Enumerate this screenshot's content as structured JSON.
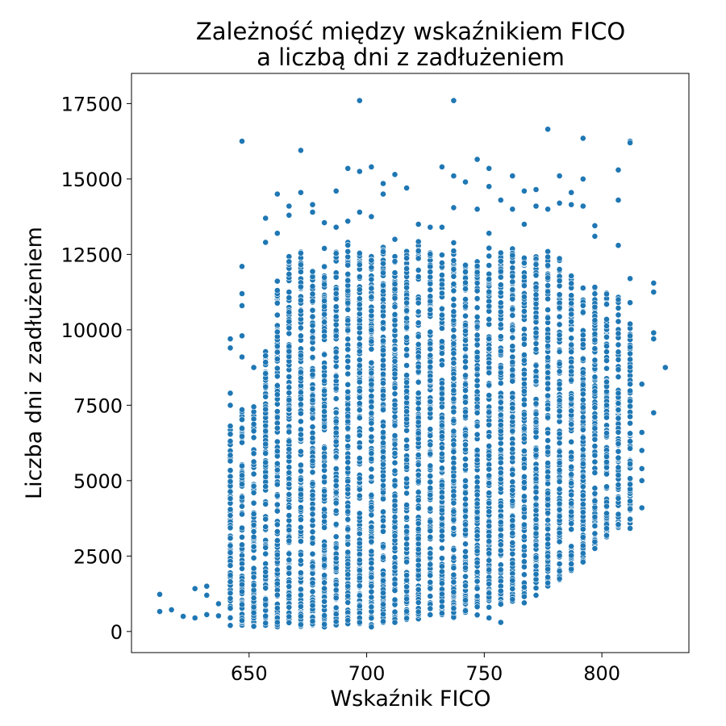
{
  "chart_data": {
    "type": "scatter",
    "title": [
      "Zależność między wskaźnikiem FICO",
      "a liczbą dni z zadłużeniem"
    ],
    "xlabel": "Wskaźnik FICO",
    "ylabel": "Liczba dni z zadłużeniem",
    "xlim": [
      600,
      837
    ],
    "ylim": [
      -700,
      18500
    ],
    "xticks": [
      650,
      700,
      750,
      800
    ],
    "yticks": [
      0,
      2500,
      5000,
      7500,
      10000,
      12500,
      15000,
      17500
    ],
    "grid": false,
    "legend": "none",
    "point_color": "#1f77b4",
    "outliers": [
      [
        612,
        660
      ],
      [
        612,
        1230
      ],
      [
        617,
        720
      ],
      [
        622,
        500
      ],
      [
        627,
        450
      ],
      [
        627,
        1420
      ],
      [
        632,
        560
      ],
      [
        632,
        1500
      ],
      [
        632,
        1200
      ],
      [
        637,
        520
      ],
      [
        637,
        920
      ],
      [
        642,
        9700
      ],
      [
        642,
        9400
      ],
      [
        642,
        7900
      ],
      [
        642,
        7500
      ],
      [
        647,
        16250
      ],
      [
        647,
        12100
      ],
      [
        647,
        11200
      ],
      [
        647,
        10800
      ],
      [
        647,
        9800
      ],
      [
        647,
        9100
      ],
      [
        652,
        8750
      ],
      [
        657,
        13700
      ],
      [
        657,
        12900
      ],
      [
        662,
        14500
      ],
      [
        662,
        13200
      ],
      [
        667,
        14100
      ],
      [
        667,
        13800
      ],
      [
        672,
        15950
      ],
      [
        672,
        14550
      ],
      [
        677,
        14150
      ],
      [
        677,
        13900
      ],
      [
        682,
        13550
      ],
      [
        682,
        12700
      ],
      [
        687,
        14600
      ],
      [
        687,
        13400
      ],
      [
        692,
        15350
      ],
      [
        692,
        13600
      ],
      [
        697,
        17600
      ],
      [
        697,
        15250
      ],
      [
        697,
        13900
      ],
      [
        702,
        15400
      ],
      [
        702,
        13750
      ],
      [
        707,
        14850
      ],
      [
        707,
        14500
      ],
      [
        712,
        15150
      ],
      [
        712,
        13000
      ],
      [
        717,
        14700
      ],
      [
        722,
        13500
      ],
      [
        727,
        13400
      ],
      [
        732,
        15400
      ],
      [
        732,
        13400
      ],
      [
        737,
        17600
      ],
      [
        737,
        15100
      ],
      [
        737,
        14050
      ],
      [
        742,
        14900
      ],
      [
        747,
        15650
      ],
      [
        747,
        14000
      ],
      [
        752,
        15350
      ],
      [
        752,
        14750
      ],
      [
        752,
        13200
      ],
      [
        757,
        14300
      ],
      [
        762,
        15100
      ],
      [
        762,
        14000
      ],
      [
        767,
        14600
      ],
      [
        767,
        13500
      ],
      [
        772,
        14650
      ],
      [
        772,
        14100
      ],
      [
        777,
        16650
      ],
      [
        777,
        14000
      ],
      [
        782,
        15100
      ],
      [
        782,
        14200
      ],
      [
        787,
        14550
      ],
      [
        787,
        14150
      ],
      [
        792,
        16350
      ],
      [
        792,
        15000
      ],
      [
        792,
        14100
      ],
      [
        797,
        13450
      ],
      [
        797,
        13100
      ],
      [
        807,
        15300
      ],
      [
        807,
        14300
      ],
      [
        807,
        12800
      ],
      [
        812,
        16250
      ],
      [
        812,
        16200
      ],
      [
        812,
        11700
      ],
      [
        812,
        10900
      ],
      [
        812,
        9800
      ],
      [
        812,
        8200
      ],
      [
        817,
        8200
      ],
      [
        817,
        6600
      ],
      [
        817,
        6000
      ],
      [
        817,
        5400
      ],
      [
        817,
        5000
      ],
      [
        817,
        4100
      ],
      [
        822,
        11550
      ],
      [
        822,
        11250
      ],
      [
        822,
        9900
      ],
      [
        822,
        9700
      ],
      [
        822,
        7250
      ],
      [
        827,
        8750
      ],
      [
        747,
        550
      ],
      [
        752,
        450
      ],
      [
        757,
        300
      ],
      [
        767,
        950
      ],
      [
        772,
        1200
      ],
      [
        777,
        1800
      ],
      [
        782,
        2000
      ]
    ],
    "columns": [
      {
        "x": 642,
        "ymin": 200,
        "ymax": 7300
      },
      {
        "x": 647,
        "ymin": 200,
        "ymax": 7400
      },
      {
        "x": 652,
        "ymin": 150,
        "ymax": 7500
      },
      {
        "x": 657,
        "ymin": 200,
        "ymax": 9400
      },
      {
        "x": 662,
        "ymin": 150,
        "ymax": 11700
      },
      {
        "x": 667,
        "ymin": 200,
        "ymax": 12500
      },
      {
        "x": 672,
        "ymin": 150,
        "ymax": 12600
      },
      {
        "x": 677,
        "ymin": 200,
        "ymax": 12200
      },
      {
        "x": 682,
        "ymin": 150,
        "ymax": 12300
      },
      {
        "x": 687,
        "ymin": 200,
        "ymax": 12700
      },
      {
        "x": 692,
        "ymin": 250,
        "ymax": 12900
      },
      {
        "x": 697,
        "ymin": 200,
        "ymax": 12800
      },
      {
        "x": 702,
        "ymin": 150,
        "ymax": 12600
      },
      {
        "x": 707,
        "ymin": 300,
        "ymax": 12800
      },
      {
        "x": 712,
        "ymin": 250,
        "ymax": 12600
      },
      {
        "x": 717,
        "ymin": 300,
        "ymax": 12800
      },
      {
        "x": 722,
        "ymin": 400,
        "ymax": 13000
      },
      {
        "x": 727,
        "ymin": 500,
        "ymax": 12600
      },
      {
        "x": 732,
        "ymin": 550,
        "ymax": 12600
      },
      {
        "x": 737,
        "ymin": 450,
        "ymax": 12900
      },
      {
        "x": 742,
        "ymin": 600,
        "ymax": 12200
      },
      {
        "x": 747,
        "ymin": 700,
        "ymax": 12400
      },
      {
        "x": 752,
        "ymin": 800,
        "ymax": 12800
      },
      {
        "x": 757,
        "ymin": 900,
        "ymax": 12900
      },
      {
        "x": 762,
        "ymin": 1000,
        "ymax": 12700
      },
      {
        "x": 767,
        "ymin": 1100,
        "ymax": 12400
      },
      {
        "x": 772,
        "ymin": 1300,
        "ymax": 12600
      },
      {
        "x": 777,
        "ymin": 1500,
        "ymax": 12600
      },
      {
        "x": 782,
        "ymin": 1700,
        "ymax": 12400
      },
      {
        "x": 787,
        "ymin": 2000,
        "ymax": 11800
      },
      {
        "x": 792,
        "ymin": 2300,
        "ymax": 11400
      },
      {
        "x": 797,
        "ymin": 2700,
        "ymax": 11600
      },
      {
        "x": 802,
        "ymin": 3100,
        "ymax": 11300
      },
      {
        "x": 807,
        "ymin": 3300,
        "ymax": 11200
      },
      {
        "x": 812,
        "ymin": 3400,
        "ymax": 10200
      }
    ]
  }
}
